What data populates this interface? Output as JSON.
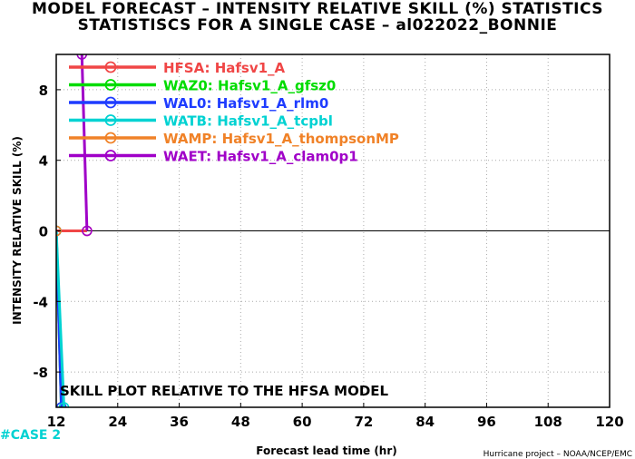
{
  "colors": {
    "HFSA": "#f04646",
    "WAZ0": "#00dc00",
    "WAL0": "#1e3cff",
    "WATB": "#00d2d2",
    "WAMP": "#f08228",
    "WAET": "#a000c8",
    "zero_line": "#000000",
    "grid": "#aaaaaa",
    "case_label": "#00d2d2"
  },
  "chart_data": {
    "type": "line",
    "title": "MODEL FORECAST – INTENSITY RELATIVE SKILL (%) STATISTICS",
    "subtitle": "STATISTISCS FOR A SINGLE CASE – al022022_BONNIE",
    "xlabel": "Forecast lead time (hr)",
    "ylabel": "INTENSITY RELATIVE SKILL (%)",
    "xlim": [
      12,
      120
    ],
    "ylim": [
      -10,
      10
    ],
    "xticks": [
      12,
      24,
      36,
      48,
      60,
      72,
      84,
      96,
      108,
      120
    ],
    "yticks": [
      -8,
      -4,
      0,
      4,
      8
    ],
    "grid": true,
    "legend_position": "top-left",
    "series": [
      {
        "key": "HFSA",
        "name": "HFSA: Hafsv1_A",
        "x": [
          12,
          18
        ],
        "y": [
          0,
          0
        ]
      },
      {
        "key": "WAZ0",
        "name": "WAZ0: Hafsv1_A_gfsz0",
        "x": [
          12,
          13
        ],
        "y": [
          0,
          -10
        ]
      },
      {
        "key": "WAL0",
        "name": "WAL0: Hafsv1_A_rlm0",
        "x": [
          12,
          13
        ],
        "y": [
          0,
          -10
        ]
      },
      {
        "key": "WATB",
        "name": "WATB: Hafsv1_A_tcpbl",
        "x": [
          12,
          13.5
        ],
        "y": [
          0,
          -10
        ]
      },
      {
        "key": "WAMP",
        "name": "WAMP: Hafsv1_A_thompsonMP",
        "x": [
          12
        ],
        "y": [
          0
        ]
      },
      {
        "key": "WAET",
        "name": "WAET: Hafsv1_A_clam0p1",
        "x": [
          17,
          18
        ],
        "y": [
          10,
          0
        ]
      }
    ],
    "annotation": "SKILL PLOT RELATIVE TO THE HFSA MODEL",
    "case_label": "#CASE  2",
    "credit": "Hurricane project – NOAA/NCEP/EMC"
  }
}
